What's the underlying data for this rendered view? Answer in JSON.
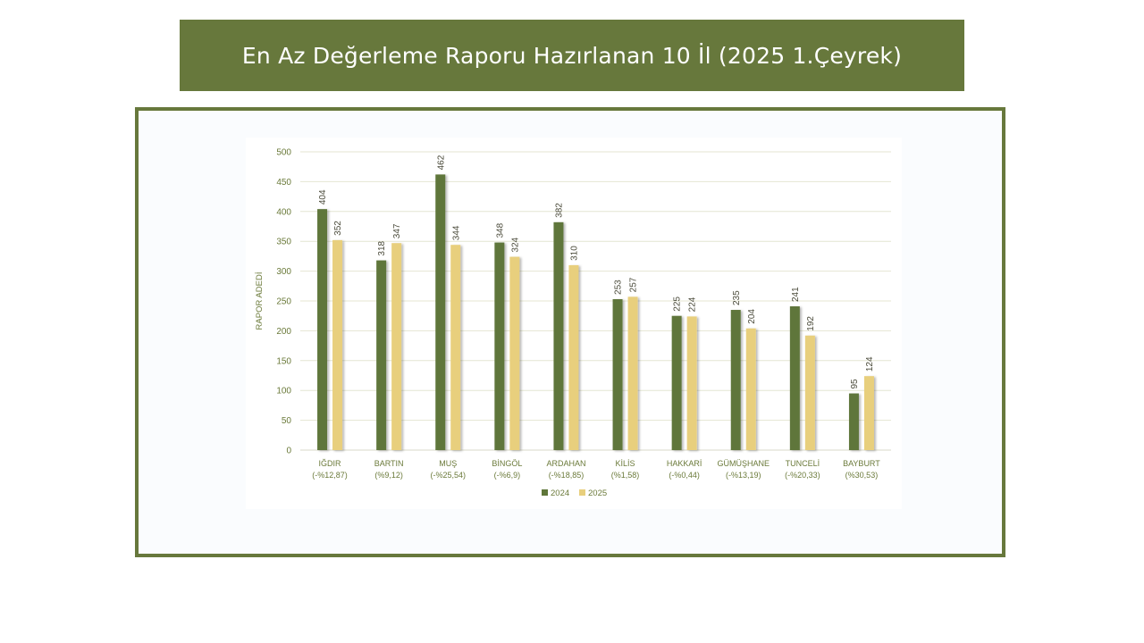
{
  "title": "En Az Değerleme Raporu Hazırlanan 10 İl (2025 1.Çeyrek)",
  "colors": {
    "accent": "#67783c",
    "series_2024": "#5f763a",
    "series_2025": "#e8cf7d",
    "label_text": "#6b7a3a"
  },
  "chart_data": {
    "type": "bar",
    "ylabel": "RAPOR ADEDİ",
    "ylim": [
      0,
      500
    ],
    "ytick_step": 50,
    "grid": true,
    "legend_position": "bottom",
    "categories": [
      [
        "IĞDIR",
        "(-%12,87)"
      ],
      [
        "BARTIN",
        "(%9,12)"
      ],
      [
        "MUŞ",
        "(-%25,54)"
      ],
      [
        "BİNGÖL",
        "(-%6,9)"
      ],
      [
        "ARDAHAN",
        "(-%18,85)"
      ],
      [
        "KİLİS",
        "(%1,58)"
      ],
      [
        "HAKKARİ",
        "(-%0,44)"
      ],
      [
        "GÜMÜŞHANE",
        "(-%13,19)"
      ],
      [
        "TUNCELİ",
        "(-%20,33)"
      ],
      [
        "BAYBURT",
        "(%30,53)"
      ]
    ],
    "series": [
      {
        "name": "2024",
        "values": [
          404,
          318,
          462,
          348,
          382,
          253,
          225,
          235,
          241,
          95
        ]
      },
      {
        "name": "2025",
        "values": [
          352,
          347,
          344,
          324,
          310,
          257,
          224,
          204,
          192,
          124
        ]
      }
    ]
  }
}
